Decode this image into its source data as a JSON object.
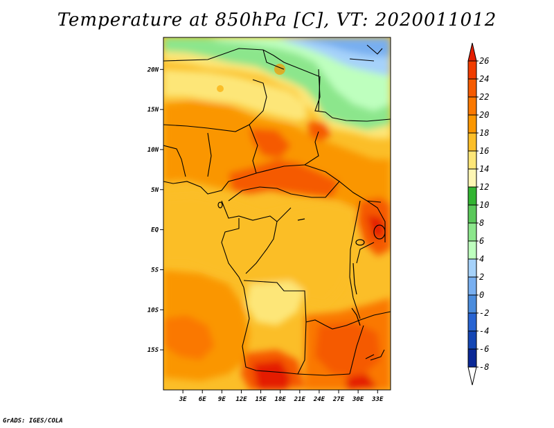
{
  "title": "Temperature at 850hPa [C], VT: 2020011012",
  "credit": "GrADS: IGES/COLA",
  "lat_labels": [
    "20N",
    "15N",
    "10N",
    "5N",
    "EQ",
    "5S",
    "10S",
    "15S"
  ],
  "lat_values": [
    20,
    15,
    10,
    5,
    0,
    -5,
    -10,
    -15
  ],
  "lon_labels": [
    "3E",
    "6E",
    "9E",
    "12E",
    "15E",
    "18E",
    "21E",
    "24E",
    "27E",
    "30E",
    "33E"
  ],
  "lon_values": [
    3,
    6,
    9,
    12,
    15,
    18,
    21,
    24,
    27,
    30,
    33
  ],
  "colorbar": {
    "labels": [
      "26",
      "24",
      "22",
      "20",
      "18",
      "16",
      "14",
      "12",
      "10",
      "8",
      "6",
      "4",
      "2",
      "0",
      "-2",
      "-4",
      "-6",
      "-8"
    ],
    "colors": [
      "#e41e00",
      "#f03c00",
      "#f55a00",
      "#fa7800",
      "#fa9600",
      "#fbbe28",
      "#fde678",
      "#fdf6b4",
      "#32b432",
      "#5ac85a",
      "#8ce68c",
      "#beffbe",
      "#a6d2fa",
      "#78aff0",
      "#4b8cdc",
      "#2864d2",
      "#1446b4",
      "#0a2896",
      "#000064"
    ]
  },
  "map_extent": {
    "lon_min": 0,
    "lon_max": 35,
    "lat_min": -20,
    "lat_max": 24
  }
}
